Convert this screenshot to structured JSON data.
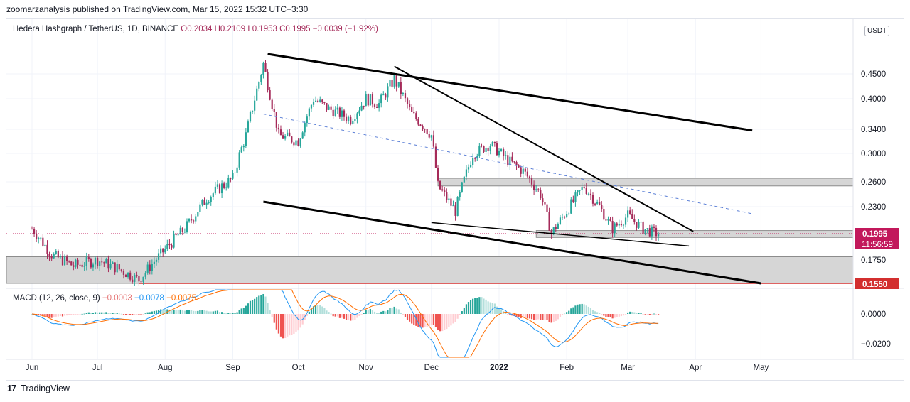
{
  "publisher_line": "zoomarzanalysis published on TradingView.com, Mar 15, 2022 15:32 UTC+3:30",
  "legend": {
    "symbol": "Hedera Hashgraph / TetherUS, 1D, BINANCE",
    "o": "O0.2034",
    "h": "H0.2109",
    "l": "L0.1953",
    "c": "C0.1995",
    "change": "−0.0039 (−1.92%)"
  },
  "macd_legend": {
    "label": "MACD (12, 26, close, 9)",
    "hist": "−0.0003",
    "macd": "−0.0078",
    "signal": "−0.0075"
  },
  "currency_badge": "USDT",
  "footer": {
    "logo": "17",
    "text": "TradingView"
  },
  "colors": {
    "up": "#26a69a",
    "down": "#a52a59",
    "price_badge": "#c2185b",
    "support_line": "#d32f2f",
    "macd_line": "#2196f3",
    "signal_line": "#ff6d00"
  },
  "chart_data": {
    "type": "candlestick",
    "symbol": "HBAR/USDT",
    "timeframe": "1D",
    "y_ticks": [
      "0.4500",
      "0.4000",
      "0.3400",
      "0.3000",
      "0.2600",
      "0.2300",
      "0.1750"
    ],
    "y_tick_values": [
      0.45,
      0.4,
      0.34,
      0.3,
      0.26,
      0.23,
      0.175
    ],
    "x_ticks": [
      "Jun",
      "Jul",
      "Aug",
      "Sep",
      "Oct",
      "Nov",
      "Dec",
      "2022",
      "Feb",
      "Mar",
      "Apr",
      "May"
    ],
    "x_tick_dates": [
      "2021-06-01",
      "2021-07-01",
      "2021-08-01",
      "2021-09-01",
      "2021-10-01",
      "2021-11-01",
      "2021-12-01",
      "2022-01-01",
      "2022-02-01",
      "2022-03-01",
      "2022-04-01",
      "2022-05-01"
    ],
    "last_price": "0.1995",
    "countdown": "11:56:59",
    "support_level": "0.1550",
    "zones": [
      {
        "name": "resistance-zone",
        "from": 0.255,
        "to": 0.265
      },
      {
        "name": "current-zone",
        "from": 0.196,
        "to": 0.203
      },
      {
        "name": "demand-zone",
        "from": 0.155,
        "to": 0.178
      }
    ],
    "close_path": [
      [
        "2021-06-01",
        0.205
      ],
      [
        "2021-06-10",
        0.18
      ],
      [
        "2021-06-20",
        0.17
      ],
      [
        "2021-07-01",
        0.175
      ],
      [
        "2021-07-10",
        0.168
      ],
      [
        "2021-07-20",
        0.158
      ],
      [
        "2021-08-01",
        0.185
      ],
      [
        "2021-08-10",
        0.205
      ],
      [
        "2021-08-20",
        0.24
      ],
      [
        "2021-09-01",
        0.265
      ],
      [
        "2021-09-07",
        0.33
      ],
      [
        "2021-09-15",
        0.47
      ],
      [
        "2021-09-22",
        0.33
      ],
      [
        "2021-10-01",
        0.32
      ],
      [
        "2021-10-08",
        0.4
      ],
      [
        "2021-10-15",
        0.38
      ],
      [
        "2021-10-25",
        0.36
      ],
      [
        "2021-11-01",
        0.4
      ],
      [
        "2021-11-07",
        0.39
      ],
      [
        "2021-11-14",
        0.44
      ],
      [
        "2021-11-22",
        0.37
      ],
      [
        "2021-12-01",
        0.33
      ],
      [
        "2021-12-04",
        0.255
      ],
      [
        "2021-12-12",
        0.225
      ],
      [
        "2021-12-20",
        0.3
      ],
      [
        "2021-12-28",
        0.315
      ],
      [
        "2022-01-05",
        0.29
      ],
      [
        "2022-01-12",
        0.275
      ],
      [
        "2022-01-20",
        0.245
      ],
      [
        "2022-01-25",
        0.2
      ],
      [
        "2022-02-01",
        0.225
      ],
      [
        "2022-02-09",
        0.255
      ],
      [
        "2022-02-16",
        0.23
      ],
      [
        "2022-02-22",
        0.205
      ],
      [
        "2022-03-01",
        0.22
      ],
      [
        "2022-03-08",
        0.205
      ],
      [
        "2022-03-15",
        0.1995
      ]
    ],
    "trendlines": [
      {
        "name": "upper-channel",
        "from": [
          "2021-09-17",
          0.49
        ],
        "to": [
          "2022-04-27",
          0.338
        ]
      },
      {
        "name": "lower-channel",
        "from": [
          "2021-09-15",
          0.236
        ],
        "to": [
          "2022-05-01",
          0.155
        ]
      },
      {
        "name": "wedge-top",
        "from": [
          "2021-11-14",
          0.465
        ],
        "to": [
          "2022-03-31",
          0.202
        ]
      },
      {
        "name": "wedge-bottom",
        "from": [
          "2021-12-01",
          0.212
        ],
        "to": [
          "2022-03-29",
          0.188
        ]
      },
      {
        "name": "dashed-midline",
        "from": [
          "2021-09-15",
          0.37
        ],
        "to": [
          "2022-04-27",
          0.222
        ]
      }
    ],
    "macd": {
      "y_ticks": [
        "0.0000",
        "−0.0200"
      ],
      "y_tick_values": [
        0.0,
        -0.02
      ]
    }
  }
}
